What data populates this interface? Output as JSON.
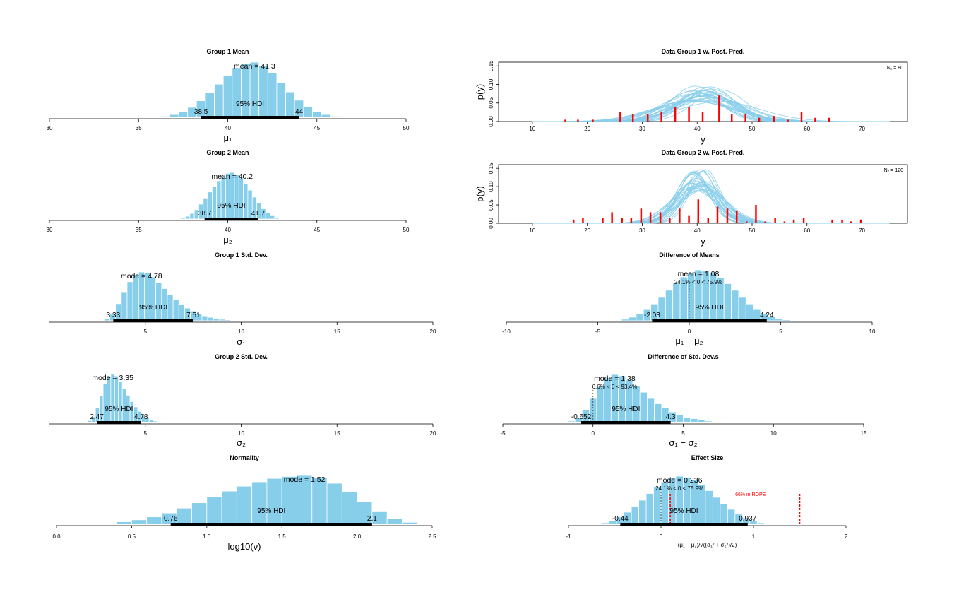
{
  "colors": {
    "bar": "#87ceeb",
    "bar_edge": "#ffffff",
    "curve": "#87ceeb",
    "data": "#ff0000",
    "rope": "#ff0000",
    "axis": "#000000",
    "hdi": "#000000"
  },
  "chart_data": [
    {
      "id": "g1mean",
      "type": "bar",
      "title": "Group 1 Mean",
      "xlabel": "μ₁",
      "xlim": [
        30,
        50
      ],
      "xticks": [
        30,
        35,
        40,
        45,
        50
      ],
      "bins": [
        [
          36.5,
          0.02
        ],
        [
          37,
          0.05
        ],
        [
          37.5,
          0.1
        ],
        [
          38,
          0.18
        ],
        [
          38.5,
          0.3
        ],
        [
          39,
          0.45
        ],
        [
          39.5,
          0.6
        ],
        [
          40,
          0.76
        ],
        [
          40.5,
          0.9
        ],
        [
          41,
          0.98
        ],
        [
          41.5,
          1.0
        ],
        [
          42,
          0.93
        ],
        [
          42.5,
          0.8
        ],
        [
          43,
          0.63
        ],
        [
          43.5,
          0.46
        ],
        [
          44,
          0.31
        ],
        [
          44.5,
          0.19
        ],
        [
          45,
          0.1
        ],
        [
          45.5,
          0.05
        ],
        [
          46,
          0.02
        ]
      ],
      "binwidth": 0.5,
      "center_label": "mean = 41.3",
      "hdi": {
        "low": 38.5,
        "high": 44,
        "low_label": "38.5",
        "high_label": "44",
        "label": "95% HDI"
      }
    },
    {
      "id": "g2mean",
      "type": "bar",
      "title": "Group 2 Mean",
      "xlabel": "μ₂",
      "xlim": [
        30,
        50
      ],
      "xticks": [
        30,
        35,
        40,
        45,
        50
      ],
      "bins": [
        [
          37.5,
          0.03
        ],
        [
          37.75,
          0.06
        ],
        [
          38,
          0.12
        ],
        [
          38.25,
          0.2
        ],
        [
          38.5,
          0.32
        ],
        [
          38.75,
          0.45
        ],
        [
          39,
          0.58
        ],
        [
          39.25,
          0.7
        ],
        [
          39.5,
          0.82
        ],
        [
          39.75,
          0.92
        ],
        [
          40,
          0.98
        ],
        [
          40.25,
          1.0
        ],
        [
          40.5,
          0.96
        ],
        [
          40.75,
          0.88
        ],
        [
          41,
          0.76
        ],
        [
          41.25,
          0.62
        ],
        [
          41.5,
          0.47
        ],
        [
          41.75,
          0.34
        ],
        [
          42,
          0.22
        ],
        [
          42.25,
          0.13
        ],
        [
          42.5,
          0.07
        ],
        [
          42.75,
          0.03
        ]
      ],
      "binwidth": 0.25,
      "center_label": "mean = 40.2",
      "hdi": {
        "low": 38.7,
        "high": 41.7,
        "low_label": "38.7",
        "high_label": "41.7",
        "label": "95% HDI"
      }
    },
    {
      "id": "g1sd",
      "type": "bar",
      "title": "Group 1 Std. Dev.",
      "xlabel": "σ₁",
      "xlim": [
        0,
        20
      ],
      "xticks": [
        5,
        10,
        15,
        20
      ],
      "bins": [
        [
          3,
          0.05
        ],
        [
          3.3,
          0.15
        ],
        [
          3.6,
          0.35
        ],
        [
          3.9,
          0.58
        ],
        [
          4.2,
          0.8
        ],
        [
          4.5,
          0.95
        ],
        [
          4.8,
          1.0
        ],
        [
          5.1,
          0.98
        ],
        [
          5.4,
          0.9
        ],
        [
          5.7,
          0.78
        ],
        [
          6,
          0.66
        ],
        [
          6.3,
          0.54
        ],
        [
          6.6,
          0.43
        ],
        [
          6.9,
          0.34
        ],
        [
          7.2,
          0.26
        ],
        [
          7.5,
          0.2
        ],
        [
          7.8,
          0.14
        ],
        [
          8.1,
          0.1
        ],
        [
          8.4,
          0.07
        ],
        [
          8.7,
          0.05
        ],
        [
          9,
          0.03
        ],
        [
          9.3,
          0.02
        ],
        [
          9.6,
          0.01
        ]
      ],
      "binwidth": 0.3,
      "center_label": "mode = 4.78",
      "hdi": {
        "low": 3.33,
        "high": 7.51,
        "low_label": "3.33",
        "high_label": "7.51",
        "label": "95% HDI"
      }
    },
    {
      "id": "g2sd",
      "type": "bar",
      "title": "Group 2 Std. Dev.",
      "xlabel": "σ₂",
      "xlim": [
        0,
        20
      ],
      "xticks": [
        5,
        10,
        15,
        20
      ],
      "bins": [
        [
          2.1,
          0.04
        ],
        [
          2.3,
          0.12
        ],
        [
          2.5,
          0.3
        ],
        [
          2.7,
          0.55
        ],
        [
          2.9,
          0.8
        ],
        [
          3.1,
          0.95
        ],
        [
          3.3,
          1.0
        ],
        [
          3.5,
          0.95
        ],
        [
          3.7,
          0.84
        ],
        [
          3.9,
          0.7
        ],
        [
          4.1,
          0.56
        ],
        [
          4.3,
          0.43
        ],
        [
          4.5,
          0.32
        ],
        [
          4.7,
          0.23
        ],
        [
          4.9,
          0.16
        ],
        [
          5.1,
          0.1
        ],
        [
          5.3,
          0.06
        ],
        [
          5.5,
          0.03
        ]
      ],
      "binwidth": 0.2,
      "center_label": "mode = 3.35",
      "hdi": {
        "low": 2.47,
        "high": 4.78,
        "low_label": "2.47",
        "high_label": "4.78",
        "label": "95% HDI"
      }
    },
    {
      "id": "normality",
      "type": "bar",
      "title": "Normality",
      "xlabel": "log10(ν)",
      "xlim": [
        0,
        2.5
      ],
      "xticks": [
        0.0,
        0.5,
        1.0,
        1.5,
        2.0,
        2.5
      ],
      "tick_labels": [
        "0.0",
        "0.5",
        "1.0",
        "1.5",
        "2.0",
        "2.5"
      ],
      "bins": [
        [
          0.35,
          0.02
        ],
        [
          0.45,
          0.05
        ],
        [
          0.55,
          0.09
        ],
        [
          0.65,
          0.15
        ],
        [
          0.75,
          0.23
        ],
        [
          0.85,
          0.33
        ],
        [
          0.95,
          0.44
        ],
        [
          1.05,
          0.56
        ],
        [
          1.15,
          0.68
        ],
        [
          1.25,
          0.78
        ],
        [
          1.35,
          0.87
        ],
        [
          1.45,
          0.94
        ],
        [
          1.55,
          0.98
        ],
        [
          1.65,
          1.0
        ],
        [
          1.75,
          0.96
        ],
        [
          1.85,
          0.84
        ],
        [
          1.95,
          0.66
        ],
        [
          2.05,
          0.46
        ],
        [
          2.15,
          0.27
        ],
        [
          2.25,
          0.12
        ],
        [
          2.35,
          0.04
        ]
      ],
      "binwidth": 0.1,
      "center_label": "mode = 1.52",
      "hdi": {
        "low": 0.76,
        "high": 2.1,
        "low_label": "0.76",
        "high_label": "2.1",
        "label": "95% HDI"
      }
    },
    {
      "id": "data1",
      "type": "line",
      "title": "Data Group 1 w. Post. Pred.",
      "xlabel": "y",
      "ylabel": "p(y)",
      "xlim": [
        5,
        77
      ],
      "ylim": [
        0,
        0.16
      ],
      "xticks": [
        10,
        20,
        30,
        40,
        50,
        60,
        70
      ],
      "yticks": [
        0.0,
        0.05,
        0.1,
        0.15
      ],
      "ytick_labels": [
        "0.00",
        "0.05",
        "0.10",
        "0.15"
      ],
      "legend": "N₁ = 80",
      "data_x": [
        16,
        18.3,
        21,
        26,
        28.3,
        31,
        33.5,
        36,
        38.5,
        41,
        44,
        46.3,
        48.8,
        51.3,
        54,
        56.5,
        59,
        61.5,
        64
      ],
      "data_h": [
        0.005,
        0.005,
        0.005,
        0.025,
        0.02,
        0.02,
        0.025,
        0.04,
        0.04,
        0.025,
        0.07,
        0.02,
        0.02,
        0.01,
        0.015,
        0.005,
        0.025,
        0.01,
        0.01
      ],
      "curve_mu_range": [
        38.5,
        44.5
      ],
      "curve_sigma_range": [
        4.0,
        7.5
      ]
    },
    {
      "id": "data2",
      "type": "line",
      "title": "Data Group 2 w. Post. Pred.",
      "xlabel": "y",
      "ylabel": "p(y)",
      "xlim": [
        5,
        77
      ],
      "ylim": [
        0,
        0.16
      ],
      "xticks": [
        10,
        20,
        30,
        40,
        50,
        60,
        70
      ],
      "yticks": [
        0.0,
        0.05,
        0.1,
        0.15
      ],
      "ytick_labels": [
        "0.00",
        "0.05",
        "0.10",
        "0.15"
      ],
      "legend": "N₂ = 120",
      "data_x": [
        17.5,
        19.2,
        22.8,
        24.5,
        26.3,
        28,
        29.8,
        31.5,
        33.3,
        35,
        36.8,
        38.5,
        40.2,
        42,
        43.7,
        45.5,
        47.2,
        49,
        50.7,
        52.4,
        54.2,
        55.9,
        57.6,
        59.4,
        64.6,
        66.4,
        68,
        69.8
      ],
      "data_h": [
        0.01,
        0.015,
        0.015,
        0.03,
        0.015,
        0.015,
        0.04,
        0.03,
        0.03,
        0.015,
        0.04,
        0.02,
        0.065,
        0.015,
        0.045,
        0.04,
        0.035,
        0.005,
        0.05,
        0.005,
        0.015,
        0.005,
        0.01,
        0.015,
        0.01,
        0.01,
        0.005,
        0.01
      ],
      "curve_mu_range": [
        38.8,
        41.6
      ],
      "curve_sigma_range": [
        2.7,
        4.6
      ]
    },
    {
      "id": "diffmeans",
      "type": "bar",
      "title": "Difference of Means",
      "xlabel": "μ₁ − μ₂",
      "xlim": [
        -10,
        10
      ],
      "xticks": [
        -10,
        -5,
        0,
        5,
        10
      ],
      "bins": [
        [
          -3.5,
          0.03
        ],
        [
          -3.1,
          0.07
        ],
        [
          -2.7,
          0.13
        ],
        [
          -2.3,
          0.22
        ],
        [
          -1.9,
          0.33
        ],
        [
          -1.5,
          0.46
        ],
        [
          -1.1,
          0.6
        ],
        [
          -0.7,
          0.74
        ],
        [
          -0.3,
          0.86
        ],
        [
          0.1,
          0.95
        ],
        [
          0.5,
          1.0
        ],
        [
          0.9,
          0.99
        ],
        [
          1.3,
          0.94
        ],
        [
          1.7,
          0.85
        ],
        [
          2.1,
          0.73
        ],
        [
          2.5,
          0.6
        ],
        [
          2.9,
          0.46
        ],
        [
          3.3,
          0.33
        ],
        [
          3.7,
          0.22
        ],
        [
          4.1,
          0.14
        ],
        [
          4.5,
          0.08
        ],
        [
          4.9,
          0.04
        ],
        [
          5.3,
          0.02
        ]
      ],
      "binwidth": 0.4,
      "center_label": "mean = 1.08",
      "comp_label": "24.1% < 0 < 75.9%",
      "comp_value": 0,
      "hdi": {
        "low": -2.03,
        "high": 4.24,
        "low_label": "-2.03",
        "high_label": "4.24",
        "label": "95% HDI"
      }
    },
    {
      "id": "diffsd",
      "type": "bar",
      "title": "Difference of Std. Dev.s",
      "xlabel": "σ₁ − σ₂",
      "xlim": [
        -5,
        15
      ],
      "xticks": [
        -5,
        0,
        5,
        10,
        15
      ],
      "bins": [
        [
          -1.2,
          0.03
        ],
        [
          -0.8,
          0.1
        ],
        [
          -0.4,
          0.26
        ],
        [
          0,
          0.5
        ],
        [
          0.4,
          0.75
        ],
        [
          0.8,
          0.93
        ],
        [
          1.2,
          1.0
        ],
        [
          1.6,
          0.97
        ],
        [
          2,
          0.88
        ],
        [
          2.4,
          0.76
        ],
        [
          2.8,
          0.63
        ],
        [
          3.2,
          0.5
        ],
        [
          3.6,
          0.39
        ],
        [
          4,
          0.3
        ],
        [
          4.4,
          0.22
        ],
        [
          4.8,
          0.16
        ],
        [
          5.2,
          0.11
        ],
        [
          5.6,
          0.08
        ],
        [
          6,
          0.05
        ],
        [
          6.4,
          0.03
        ],
        [
          6.8,
          0.02
        ]
      ],
      "binwidth": 0.4,
      "center_label": "mode = 1.38",
      "comp_label": "6.6% < 0 < 93.4%",
      "comp_value": 0,
      "hdi": {
        "low": -0.652,
        "high": 4.3,
        "low_label": "-0.652",
        "high_label": "4.3",
        "label": "95% HDI"
      }
    },
    {
      "id": "effsize",
      "type": "bar",
      "title": "Effect Size",
      "xlabel": "(μ₁ − μ₂)/√((σ₁² + σ₂²)/2)",
      "xlim": [
        -1,
        2
      ],
      "xticks": [
        -1,
        0,
        1,
        2
      ],
      "bins": [
        [
          -0.6,
          0.03
        ],
        [
          -0.52,
          0.08
        ],
        [
          -0.44,
          0.15
        ],
        [
          -0.36,
          0.25
        ],
        [
          -0.28,
          0.37
        ],
        [
          -0.2,
          0.5
        ],
        [
          -0.12,
          0.64
        ],
        [
          -0.04,
          0.77
        ],
        [
          0.04,
          0.88
        ],
        [
          0.12,
          0.96
        ],
        [
          0.2,
          1.0
        ],
        [
          0.28,
          0.98
        ],
        [
          0.36,
          0.92
        ],
        [
          0.44,
          0.82
        ],
        [
          0.52,
          0.7
        ],
        [
          0.6,
          0.56
        ],
        [
          0.68,
          0.43
        ],
        [
          0.76,
          0.31
        ],
        [
          0.84,
          0.21
        ],
        [
          0.92,
          0.13
        ],
        [
          1.0,
          0.07
        ],
        [
          1.08,
          0.03
        ],
        [
          1.16,
          0.01
        ]
      ],
      "binwidth": 0.08,
      "center_label": "mode = 0.236",
      "comp_label": "24.1% < 0 < 75.9%",
      "comp_value": 0,
      "rope": [
        0.1,
        1.5
      ],
      "rope_label": "66% in ROPE",
      "hdi": {
        "low": -0.44,
        "high": 0.937,
        "low_label": "-0.44",
        "high_label": "0.937",
        "label": "95% HDI"
      }
    }
  ]
}
